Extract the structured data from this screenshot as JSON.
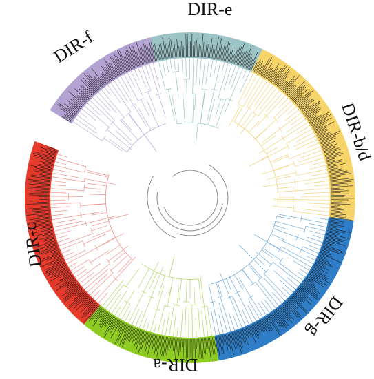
{
  "clades": [
    {
      "label": "DIR-e"
    },
    {
      "label": "DIR-f"
    },
    {
      "label": "DIR-b/d"
    },
    {
      "label": "DIR-g"
    },
    {
      "label": "DIR-a"
    },
    {
      "label": "DIR-c"
    }
  ]
}
